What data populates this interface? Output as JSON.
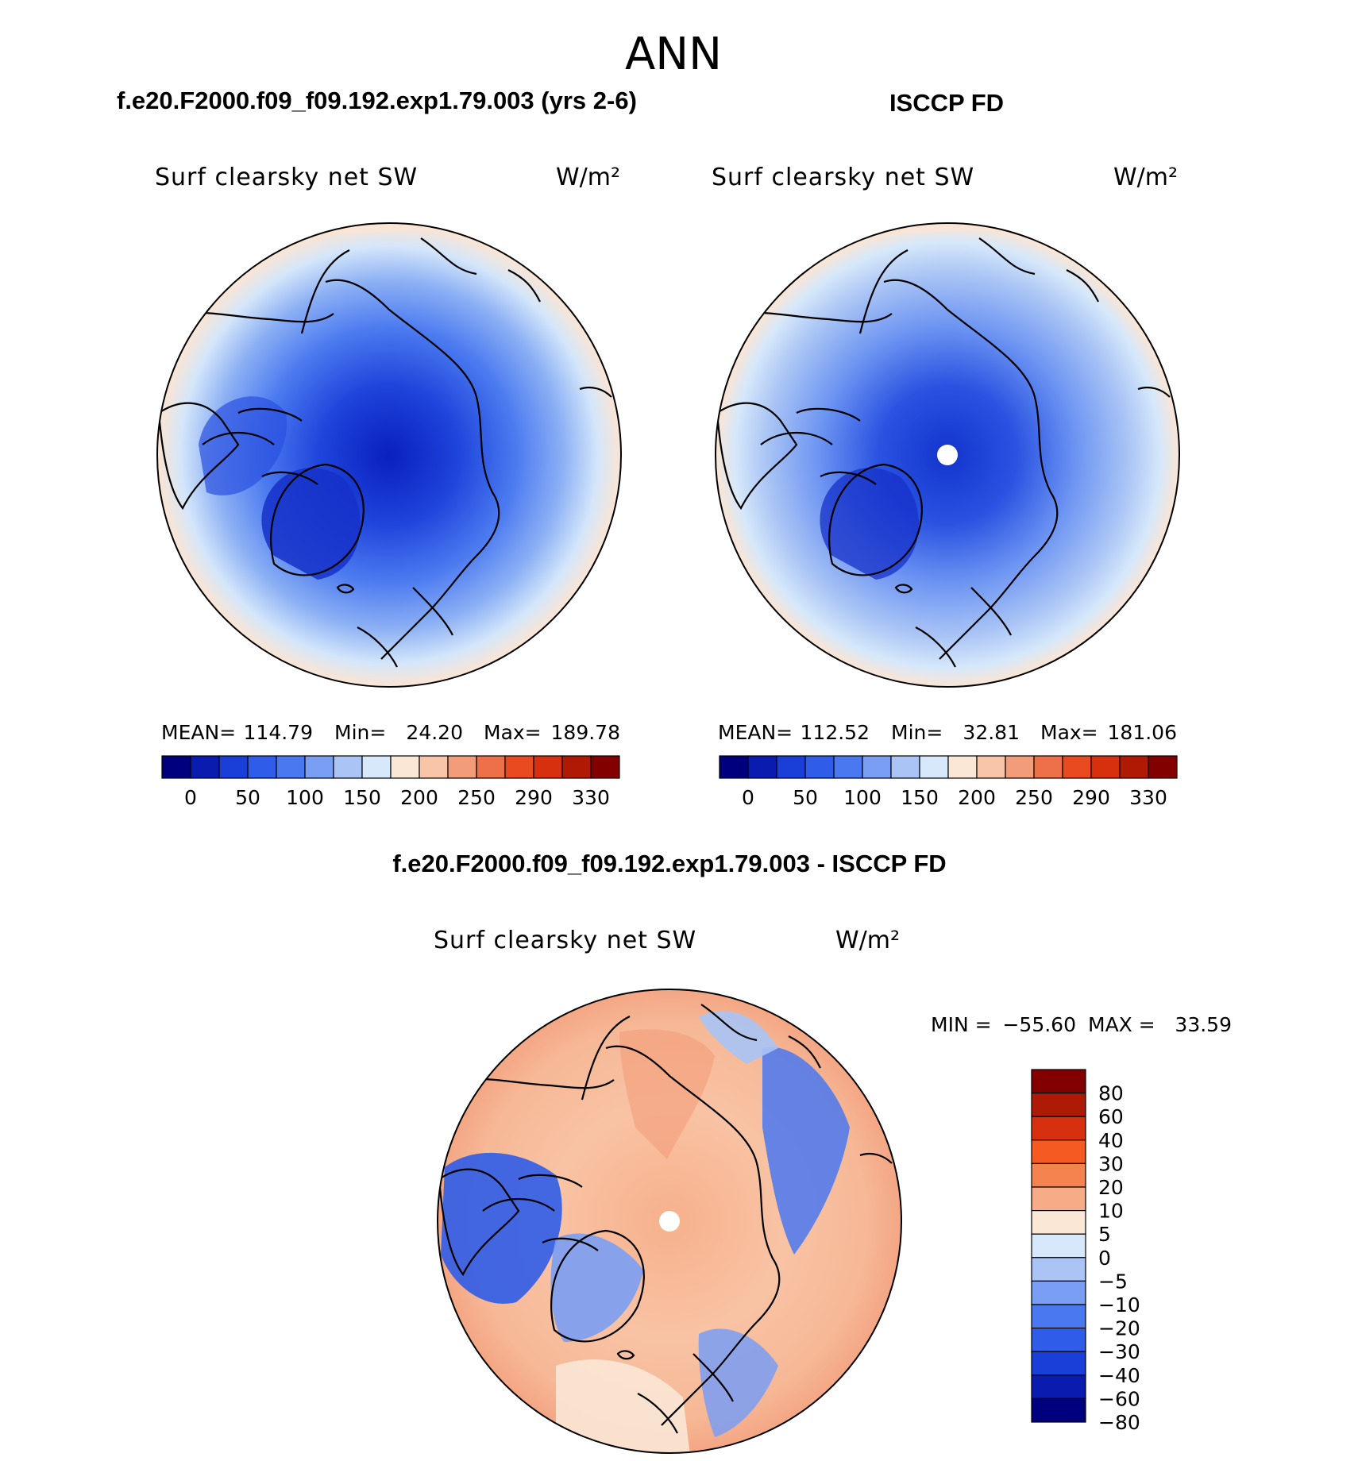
{
  "chart_data": {
    "type": "polar-stereographic-map",
    "season": "ANN",
    "panels": [
      {
        "id": "model",
        "case_title": "f.e20.F2000.f09_f09.192.exp1.79.003 (yrs 2-6)",
        "variable": "Surf clearsky net SW",
        "units": "W/m²",
        "stats": {
          "mean_label": "MEAN=",
          "mean": "114.79",
          "min_label": "Min=",
          "min": "24.20",
          "max_label": "Max=",
          "max": "189.78"
        },
        "contour_levels": [
          0,
          25,
          50,
          75,
          100,
          125,
          150,
          175,
          200,
          225,
          250,
          270,
          290,
          310,
          330
        ],
        "colorbar_labels": [
          "0",
          "50",
          "100",
          "150",
          "200",
          "250",
          "290",
          "330"
        ],
        "colorbar_colors": [
          "#00007e",
          "#0a1bb0",
          "#1a3fd8",
          "#2f5ce8",
          "#4a78f0",
          "#7a9ef3",
          "#a9c4f5",
          "#d6e8fa",
          "#fbe7d6",
          "#f8c5a8",
          "#f39c7a",
          "#ee7048",
          "#ea4a20",
          "#d6300f",
          "#b01a05",
          "#820000"
        ],
        "has_polar_hole": false
      },
      {
        "id": "obs",
        "case_title": "ISCCP FD",
        "variable": "Surf clearsky net SW",
        "units": "W/m²",
        "stats": {
          "mean_label": "MEAN=",
          "mean": "112.52",
          "min_label": "Min=",
          "min": "32.81",
          "max_label": "Max=",
          "max": "181.06"
        },
        "contour_levels": [
          0,
          25,
          50,
          75,
          100,
          125,
          150,
          175,
          200,
          225,
          250,
          270,
          290,
          310,
          330
        ],
        "colorbar_labels": [
          "0",
          "50",
          "100",
          "150",
          "200",
          "250",
          "290",
          "330"
        ],
        "colorbar_colors": [
          "#00007e",
          "#0a1bb0",
          "#1a3fd8",
          "#2f5ce8",
          "#4a78f0",
          "#7a9ef3",
          "#a9c4f5",
          "#d6e8fa",
          "#fbe7d6",
          "#f8c5a8",
          "#f39c7a",
          "#ee7048",
          "#ea4a20",
          "#d6300f",
          "#b01a05",
          "#820000"
        ],
        "has_polar_hole": true
      },
      {
        "id": "diff",
        "case_title": "f.e20.F2000.f09_f09.192.exp1.79.003 - ISCCP FD",
        "variable": "Surf clearsky net SW",
        "units": "W/m²",
        "stats": {
          "min_label": "MIN =",
          "min": "−55.60",
          "max_label": "MAX =",
          "max": "33.59"
        },
        "contour_levels": [
          -80,
          -60,
          -40,
          -30,
          -20,
          -10,
          -5,
          0,
          5,
          10,
          20,
          30,
          40,
          60,
          80
        ],
        "colorbar_labels": [
          "80",
          "60",
          "40",
          "30",
          "20",
          "10",
          "5",
          "0",
          "−5",
          "−10",
          "−20",
          "−30",
          "−40",
          "−60",
          "−80"
        ],
        "colorbar_colors": [
          "#820000",
          "#ad1a05",
          "#d6300f",
          "#f45a22",
          "#f5834f",
          "#f7ac88",
          "#fbe7d6",
          "#d6e8fa",
          "#a9c4f5",
          "#7a9ef3",
          "#4a78f0",
          "#2f5ce8",
          "#1a3fd8",
          "#0a1bb0",
          "#00007e"
        ],
        "has_polar_hole": true
      }
    ]
  }
}
